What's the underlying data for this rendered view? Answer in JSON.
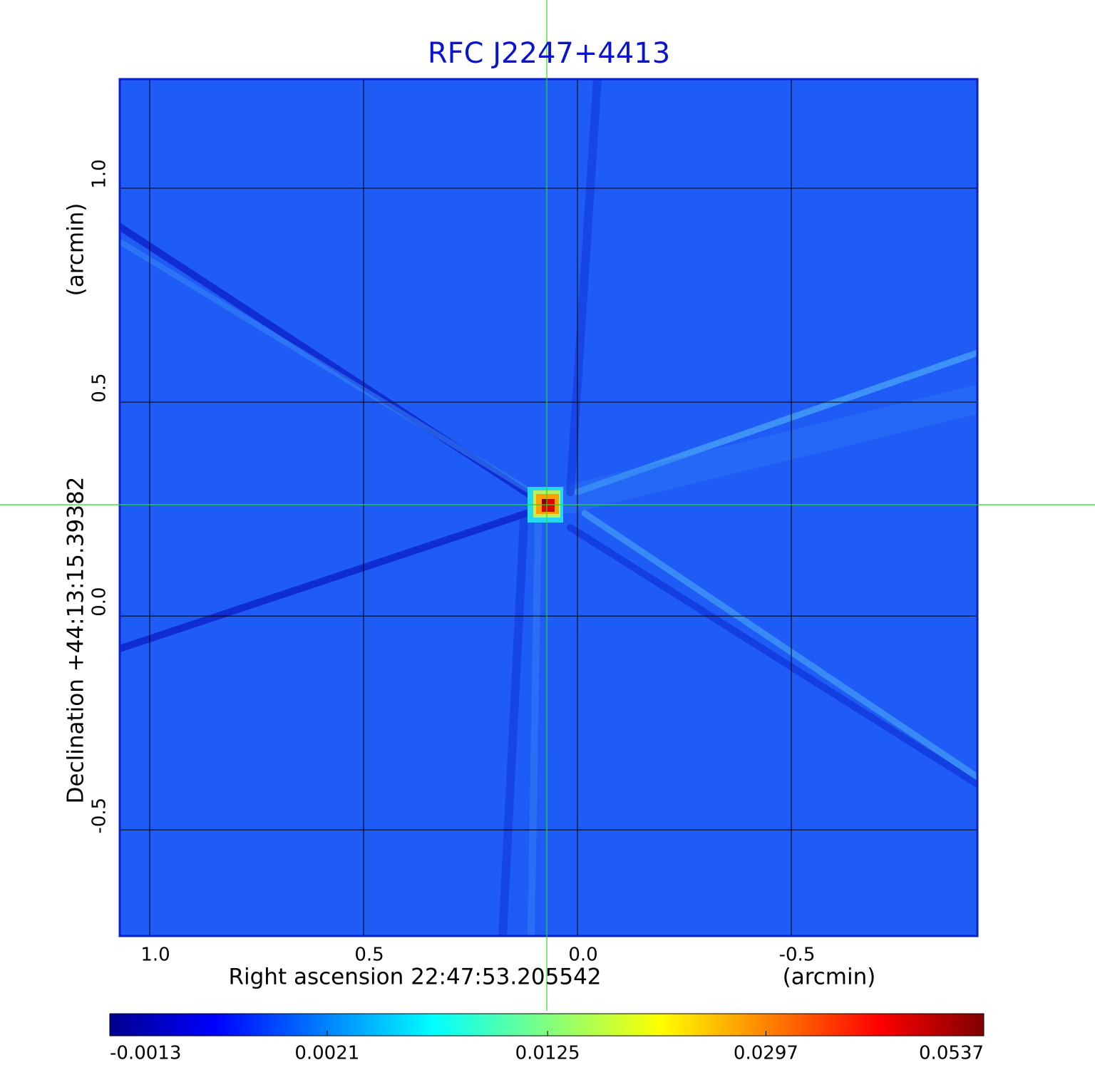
{
  "chart_data": {
    "type": "image",
    "title": "RFC J2247+4413",
    "x_label": "Right ascension  22:47:53.205542",
    "x_unit": "(arcmin)",
    "y_label": "Declination  +44:13:15.39382",
    "y_unit": "(arcmin)",
    "xlim": [
      1.07,
      -0.935
    ],
    "ylim": [
      -0.748,
      1.255
    ],
    "xticks": [
      {
        "value": 1,
        "label": "1.0"
      },
      {
        "value": 0.5,
        "label": "0.5"
      },
      {
        "value": 0,
        "label": "0.0"
      },
      {
        "value": -0.5,
        "label": "-0.5"
      }
    ],
    "yticks": [
      {
        "value": 1,
        "label": "1.0"
      },
      {
        "value": 0.5,
        "label": "0.5"
      },
      {
        "value": 0,
        "label": "0.0"
      },
      {
        "value": -0.5,
        "label": "-0.5"
      }
    ],
    "grid": true,
    "colormap": "jet",
    "colorbar_scale": "sqrt",
    "clim": [
      -0.0013,
      0.0537
    ],
    "colorbar_ticks": [
      -0.0013,
      0.0021,
      0.0125,
      0.0297,
      0.0537
    ]
  }
}
